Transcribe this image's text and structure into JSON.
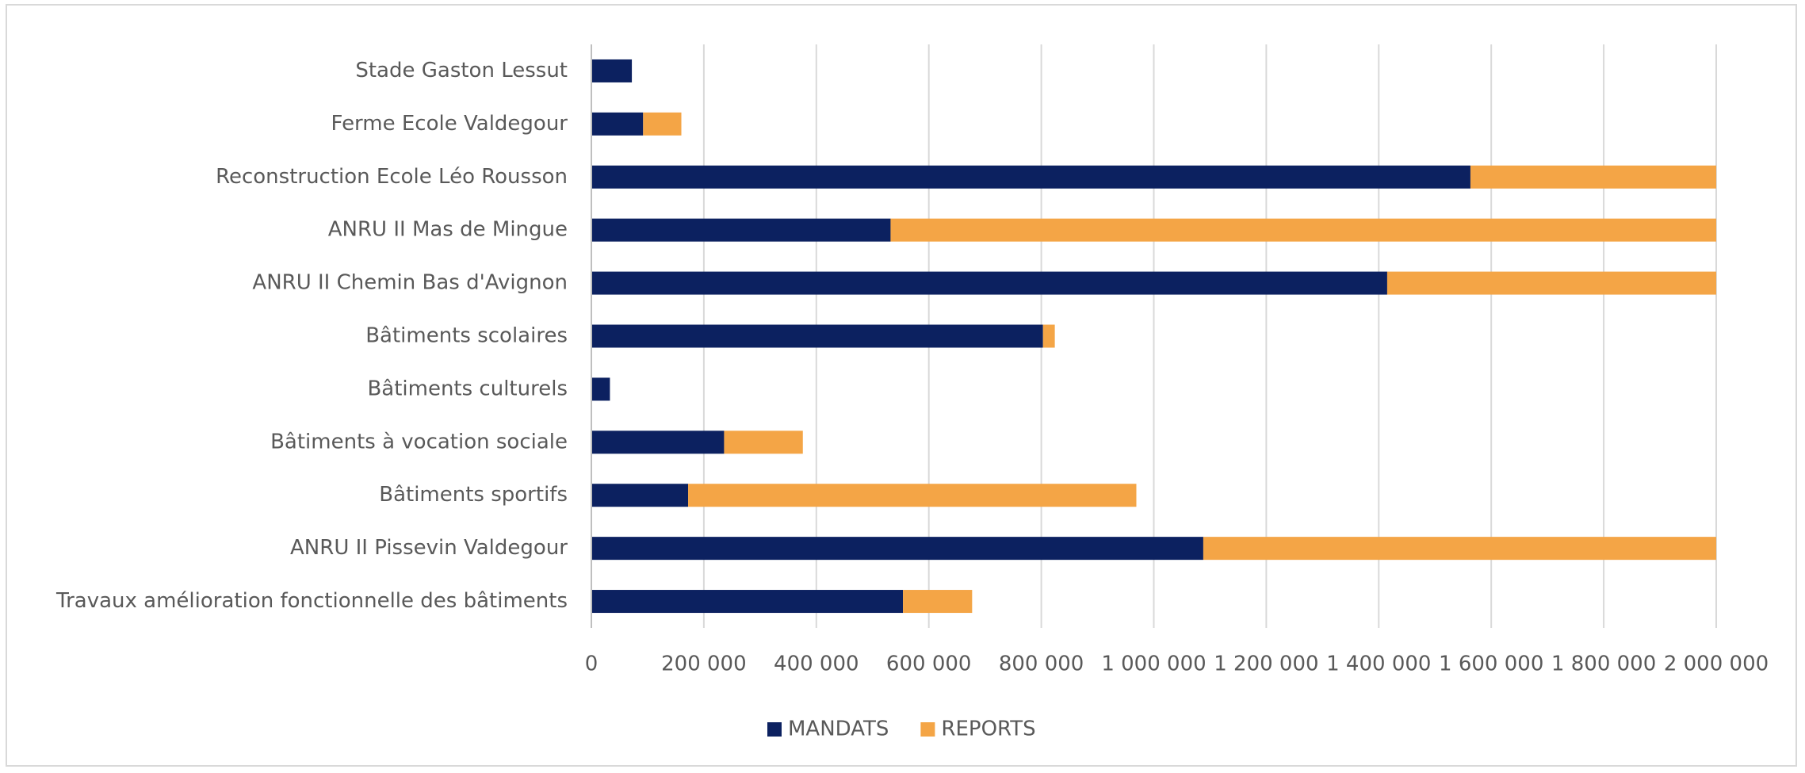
{
  "chart_data": {
    "type": "stacked-barh",
    "categories": [
      "Stade Gaston Lessut",
      "Ferme Ecole Valdegour",
      "Reconstruction Ecole Léo Rousson",
      "ANRU II Mas de Mingue",
      "ANRU II Chemin Bas d'Avignon",
      "Bâtiments scolaires",
      "Bâtiments culturels",
      "Bâtiments à vocation sociale",
      "Bâtiments sportifs",
      "ANRU II Pissevin Valdegour",
      "Travaux amélioration fonctionnelle des bâtiments"
    ],
    "series": [
      {
        "name": "MANDATS",
        "color": "#0c2160",
        "values": [
          72000,
          92000,
          1563000,
          532000,
          1415000,
          803000,
          33000,
          236000,
          172000,
          1088000,
          554000
        ]
      },
      {
        "name": "REPORTS",
        "color": "#f4a546",
        "values": [
          0,
          68000,
          437000,
          1468000,
          585000,
          21000,
          0,
          140000,
          797000,
          912000,
          123000
        ]
      }
    ],
    "xlim": [
      0,
      2000000
    ],
    "xticks": [
      0,
      {
        "value": 200000,
        "label": "200 000"
      },
      {
        "value": 400000,
        "label": "400 000"
      },
      {
        "value": 600000,
        "label": "600 000"
      },
      {
        "value": 800000,
        "label": "800 000"
      },
      {
        "value": 1000000,
        "label": "1 000 000"
      },
      {
        "value": 1200000,
        "label": "1 200 000"
      },
      {
        "value": 1400000,
        "label": "1 400 000"
      },
      {
        "value": 1600000,
        "label": "1 600 000"
      },
      {
        "value": 1800000,
        "label": "1 800 000"
      },
      {
        "value": 2000000,
        "label": "2 000 000"
      }
    ],
    "grid": true,
    "legend": "bottom"
  }
}
